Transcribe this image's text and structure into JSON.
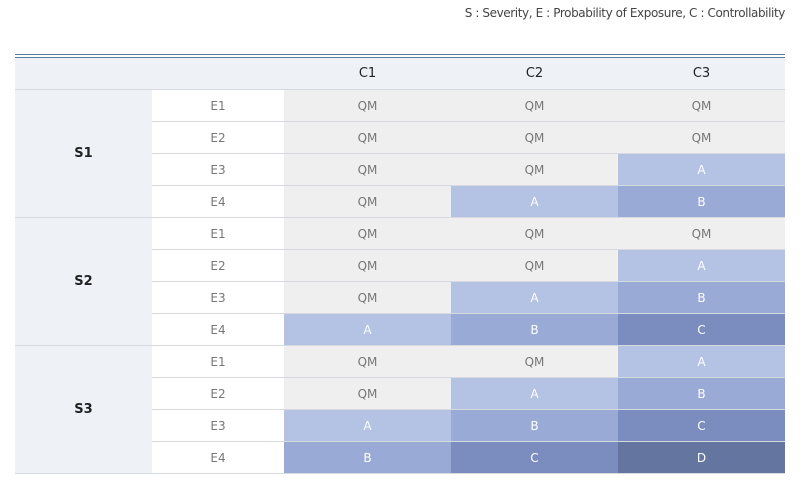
{
  "note": "S : Severity, E : Probability of Exposure, C : Controllability",
  "table": {
    "header": [
      "C1",
      "C2",
      "C3"
    ],
    "groups": [
      {
        "label": "S1",
        "rows": [
          {
            "e": "E1",
            "cells": [
              "QM",
              "QM",
              "QM"
            ]
          },
          {
            "e": "E2",
            "cells": [
              "QM",
              "QM",
              "QM"
            ]
          },
          {
            "e": "E3",
            "cells": [
              "QM",
              "QM",
              "A"
            ]
          },
          {
            "e": "E4",
            "cells": [
              "QM",
              "A",
              "B"
            ]
          }
        ]
      },
      {
        "label": "S2",
        "rows": [
          {
            "e": "E1",
            "cells": [
              "QM",
              "QM",
              "QM"
            ]
          },
          {
            "e": "E2",
            "cells": [
              "QM",
              "QM",
              "A"
            ]
          },
          {
            "e": "E3",
            "cells": [
              "QM",
              "A",
              "B"
            ]
          },
          {
            "e": "E4",
            "cells": [
              "A",
              "B",
              "C"
            ]
          }
        ]
      },
      {
        "label": "S3",
        "rows": [
          {
            "e": "E1",
            "cells": [
              "QM",
              "QM",
              "A"
            ]
          },
          {
            "e": "E2",
            "cells": [
              "QM",
              "A",
              "B"
            ]
          },
          {
            "e": "E3",
            "cells": [
              "A",
              "B",
              "C"
            ]
          },
          {
            "e": "E4",
            "cells": [
              "B",
              "C",
              "D"
            ]
          }
        ]
      }
    ]
  }
}
